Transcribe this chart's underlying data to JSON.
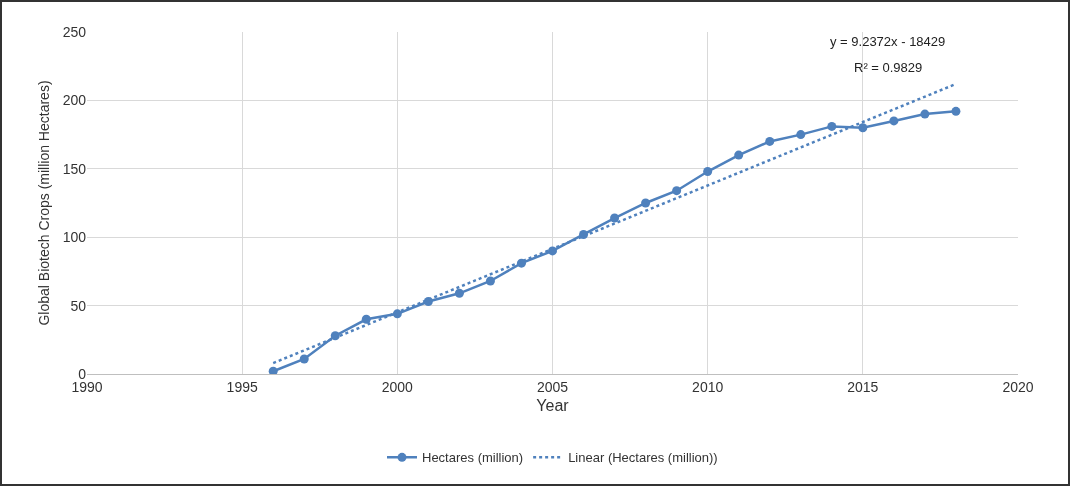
{
  "chart_data": {
    "type": "line",
    "xlabel": "Year",
    "ylabel": "Global Biotech Crops (million Hectares)",
    "x": [
      1996,
      1997,
      1998,
      1999,
      2000,
      2001,
      2002,
      2003,
      2004,
      2005,
      2006,
      2007,
      2008,
      2009,
      2010,
      2011,
      2012,
      2013,
      2014,
      2015,
      2016,
      2017,
      2018
    ],
    "series": [
      {
        "name": "Hectares (million)",
        "color": "#4f81bd",
        "marker": "circle",
        "line_style": "solid",
        "values": [
          2,
          11,
          28,
          40,
          44,
          53,
          59,
          68,
          81,
          90,
          102,
          114,
          125,
          134,
          148,
          160,
          170,
          175,
          181,
          180,
          185,
          190,
          192
        ]
      },
      {
        "name": "Linear (Hectares (million))",
        "type": "line",
        "color": "#4f81bd",
        "marker": "none",
        "line_style": "dotted",
        "x": [
          1996,
          2018
        ],
        "values": [
          8,
          212
        ]
      }
    ],
    "annotations": [
      "y = 9.2372x - 18429",
      "R² = 0.9829"
    ],
    "xlim": [
      1990,
      2020
    ],
    "xticks": [
      1990,
      1995,
      2000,
      2005,
      2010,
      2015,
      2020
    ],
    "ylim": [
      0,
      250
    ],
    "yticks": [
      0,
      50,
      100,
      150,
      200,
      250
    ],
    "grid": true,
    "legend": "bottom"
  }
}
